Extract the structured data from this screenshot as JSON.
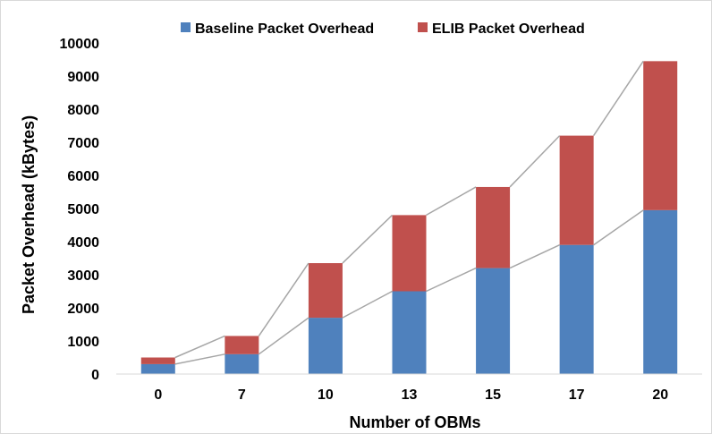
{
  "chart_data": {
    "type": "bar",
    "stacked": true,
    "title": "",
    "xlabel": "Number of OBMs",
    "ylabel": "Packet Overhead (kBytes)",
    "categories": [
      "0",
      "7",
      "10",
      "13",
      "15",
      "17",
      "20"
    ],
    "ylim": [
      0,
      10000
    ],
    "yticks": [
      0,
      1000,
      2000,
      3000,
      4000,
      5000,
      6000,
      7000,
      8000,
      9000,
      10000
    ],
    "grid": false,
    "legend_position": "top",
    "series_lines": true,
    "series": [
      {
        "name": "Baseline Packet Overhead",
        "color": "#4f81bd",
        "values": [
          300,
          600,
          1700,
          2500,
          3200,
          3900,
          4950
        ]
      },
      {
        "name": "ELIB Packet Overhead",
        "color": "#c0504d",
        "values": [
          200,
          550,
          1650,
          2300,
          2450,
          3300,
          4500
        ]
      }
    ],
    "series_line_color": "#a6a6a6"
  }
}
